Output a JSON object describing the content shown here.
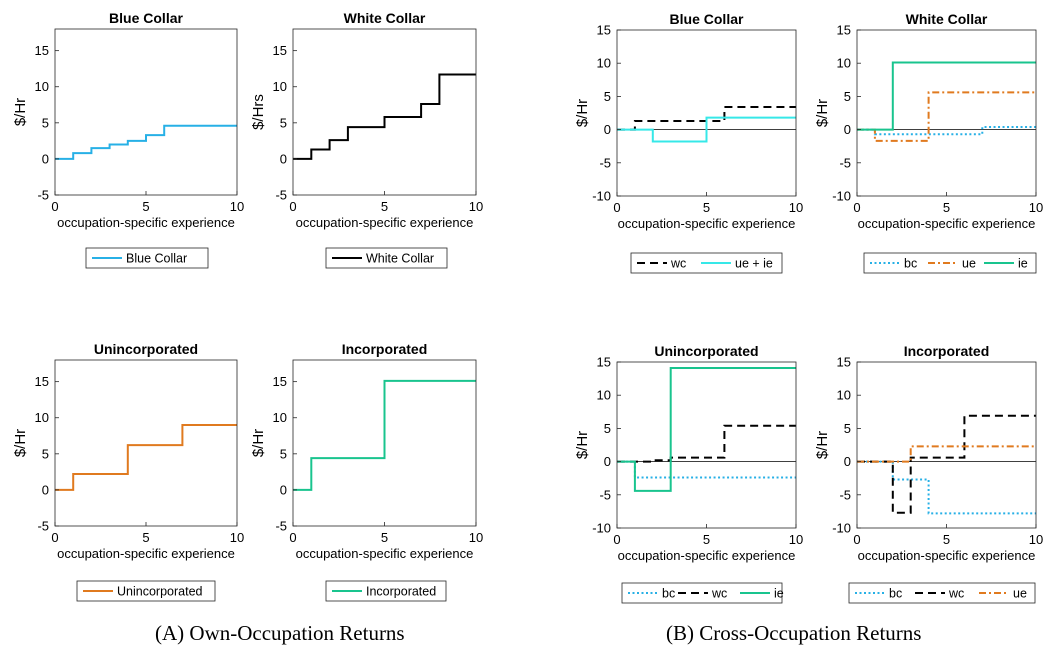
{
  "captions": {
    "a": {
      "tag": "(A)",
      "text": "Own-Occupation Returns"
    },
    "b": {
      "tag": "(B)",
      "text": "Cross-Occupation Returns"
    }
  },
  "colors": {
    "bc": "#27b0e6",
    "wc": "#000000",
    "ue": "#e07a1f",
    "ie": "#19c48e",
    "ue_ie": "#36e8e8"
  },
  "chart_data": [
    {
      "type": "line",
      "panel": "A",
      "title": "Blue Collar",
      "xlabel": "occupation-specific experience",
      "ylabel": "$/Hr",
      "xlim": [
        0,
        10
      ],
      "ylim": [
        -5,
        18
      ],
      "xticks": [
        0,
        5,
        10
      ],
      "yticks": [
        -5,
        0,
        5,
        10,
        15
      ],
      "legend_location": "below",
      "zero_line": false,
      "series": [
        {
          "name": "Blue Collar",
          "color": "#27b0e6",
          "dash": "solid",
          "step": true,
          "x": [
            0,
            1,
            2,
            3,
            4,
            5,
            6,
            10
          ],
          "values": [
            0,
            0.8,
            1.5,
            2.0,
            2.5,
            3.3,
            4.6,
            4.6
          ]
        }
      ]
    },
    {
      "type": "line",
      "panel": "A",
      "title": "White Collar",
      "xlabel": "occupation-specific experience",
      "ylabel": "$/Hrs",
      "xlim": [
        0,
        10
      ],
      "ylim": [
        -5,
        18
      ],
      "xticks": [
        0,
        5,
        10
      ],
      "yticks": [
        -5,
        0,
        5,
        10,
        15
      ],
      "legend_location": "below",
      "zero_line": false,
      "series": [
        {
          "name": "White Collar",
          "color": "#000000",
          "dash": "solid",
          "step": true,
          "x": [
            0,
            1,
            2,
            3,
            5,
            7,
            8,
            10
          ],
          "values": [
            0,
            1.3,
            2.6,
            4.4,
            5.8,
            7.6,
            11.7,
            11.7
          ]
        }
      ]
    },
    {
      "type": "line",
      "panel": "B",
      "title": "Blue Collar",
      "xlabel": "occupation-specific experience",
      "ylabel": "$/Hr",
      "xlim": [
        0,
        10
      ],
      "ylim": [
        -10,
        15
      ],
      "xticks": [
        0,
        5,
        10
      ],
      "yticks": [
        -10,
        -5,
        0,
        5,
        10,
        15
      ],
      "legend_location": "below",
      "zero_line": true,
      "series": [
        {
          "name": "wc",
          "color": "#000000",
          "dash": "dashed",
          "step": true,
          "x": [
            0,
            1,
            6,
            10
          ],
          "values": [
            0,
            1.3,
            3.4,
            3.4
          ]
        },
        {
          "name": "ue + ie",
          "color": "#36e8e8",
          "dash": "solid",
          "step": true,
          "x": [
            0,
            2,
            5,
            10
          ],
          "values": [
            0,
            -1.8,
            1.8,
            1.8
          ]
        }
      ]
    },
    {
      "type": "line",
      "panel": "B",
      "title": "White Collar",
      "xlabel": "occupation-specific experience",
      "ylabel": "$/Hr",
      "xlim": [
        0,
        10
      ],
      "ylim": [
        -10,
        15
      ],
      "xticks": [
        0,
        5,
        10
      ],
      "yticks": [
        -10,
        -5,
        0,
        5,
        10,
        15
      ],
      "legend_location": "below",
      "zero_line": true,
      "series": [
        {
          "name": "bc",
          "color": "#27b0e6",
          "dash": "dotted",
          "step": true,
          "x": [
            0,
            1,
            7,
            10
          ],
          "values": [
            0,
            -0.7,
            0.4,
            0.4
          ]
        },
        {
          "name": "ue",
          "color": "#e07a1f",
          "dash": "dashdot",
          "step": true,
          "x": [
            0,
            1,
            4,
            10
          ],
          "values": [
            0,
            -1.7,
            5.6,
            5.6
          ]
        },
        {
          "name": "ie",
          "color": "#19c48e",
          "dash": "solid",
          "step": true,
          "x": [
            0,
            2,
            10
          ],
          "values": [
            0,
            10.1,
            10.1
          ]
        }
      ]
    },
    {
      "type": "line",
      "panel": "A",
      "title": "Unincorporated",
      "xlabel": "occupation-specific experience",
      "ylabel": "$/Hr",
      "xlim": [
        0,
        10
      ],
      "ylim": [
        -5,
        18
      ],
      "xticks": [
        0,
        5,
        10
      ],
      "yticks": [
        -5,
        0,
        5,
        10,
        15
      ],
      "legend_location": "below",
      "zero_line": false,
      "series": [
        {
          "name": "Unincorporated",
          "color": "#e07a1f",
          "dash": "solid",
          "step": true,
          "x": [
            0,
            1,
            4,
            7,
            10
          ],
          "values": [
            0,
            2.2,
            6.2,
            9.0,
            9.0
          ]
        }
      ]
    },
    {
      "type": "line",
      "panel": "A",
      "title": "Incorporated",
      "xlabel": "occupation-specific experience",
      "ylabel": "$/Hr",
      "xlim": [
        0,
        10
      ],
      "ylim": [
        -5,
        18
      ],
      "xticks": [
        0,
        5,
        10
      ],
      "yticks": [
        -5,
        0,
        5,
        10,
        15
      ],
      "legend_location": "below",
      "zero_line": false,
      "series": [
        {
          "name": "Incorporated",
          "color": "#19c48e",
          "dash": "solid",
          "step": true,
          "x": [
            0,
            1,
            5,
            10
          ],
          "values": [
            0,
            4.4,
            15.1,
            15.1
          ]
        }
      ]
    },
    {
      "type": "line",
      "panel": "B",
      "title": "Unincorporated",
      "xlabel": "occupation-specific experience",
      "ylabel": "$/Hr",
      "xlim": [
        0,
        10
      ],
      "ylim": [
        -10,
        15
      ],
      "xticks": [
        0,
        5,
        10
      ],
      "yticks": [
        -10,
        -5,
        0,
        5,
        10,
        15
      ],
      "legend_location": "below",
      "zero_line": true,
      "series": [
        {
          "name": "bc",
          "color": "#27b0e6",
          "dash": "dotted",
          "step": true,
          "x": [
            0,
            1,
            10
          ],
          "values": [
            0,
            -2.4,
            -2.4
          ]
        },
        {
          "name": "wc",
          "color": "#000000",
          "dash": "dashed",
          "step": true,
          "x": [
            0,
            2,
            3,
            6,
            10
          ],
          "values": [
            0,
            0.2,
            0.6,
            5.4,
            5.4
          ]
        },
        {
          "name": "ie",
          "color": "#19c48e",
          "dash": "solid",
          "step": true,
          "x": [
            0,
            1,
            3,
            10
          ],
          "values": [
            0,
            -4.4,
            14.1,
            14.1
          ]
        }
      ]
    },
    {
      "type": "line",
      "panel": "B",
      "title": "Incorporated",
      "xlabel": "occupation-specific experience",
      "ylabel": "$/Hr",
      "xlim": [
        0,
        10
      ],
      "ylim": [
        -10,
        15
      ],
      "xticks": [
        0,
        5,
        10
      ],
      "yticks": [
        -10,
        -5,
        0,
        5,
        10,
        15
      ],
      "legend_location": "below",
      "zero_line": true,
      "series": [
        {
          "name": "bc",
          "color": "#27b0e6",
          "dash": "dotted",
          "step": true,
          "x": [
            0,
            2,
            4,
            10
          ],
          "values": [
            0,
            -2.7,
            -7.8,
            -7.8
          ]
        },
        {
          "name": "wc",
          "color": "#000000",
          "dash": "dashed",
          "step": true,
          "x": [
            0,
            2,
            3,
            6,
            10
          ],
          "values": [
            0,
            -7.7,
            0.6,
            6.9,
            6.9
          ]
        },
        {
          "name": "ue",
          "color": "#e07a1f",
          "dash": "dashdot",
          "step": true,
          "x": [
            0,
            3,
            10
          ],
          "values": [
            0,
            2.3,
            2.3
          ]
        }
      ]
    }
  ]
}
